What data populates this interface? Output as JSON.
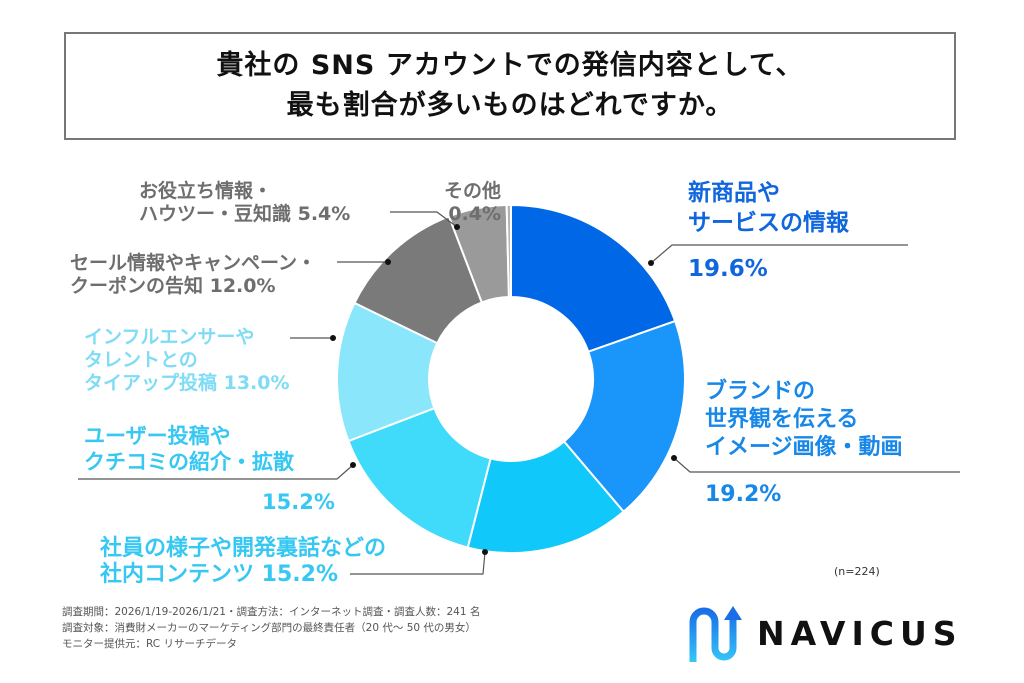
{
  "title": {
    "line1": "貴社の SNS アカウントでの発信内容として、",
    "line2": "最も割合が多いものはどれですか。"
  },
  "chart_data": {
    "type": "pie",
    "subtype": "donut",
    "title": "貴社の SNS アカウントでの発信内容として、最も割合が多いものはどれですか。",
    "sample_size": "n=224",
    "categories": [
      "新商品やサービスの情報",
      "ブランドの世界観を伝えるイメージ画像・動画",
      "社員の様子や開発裏話などの社内コンテンツ",
      "ユーザー投稿やクチコミの紹介・拡散",
      "インフルエンサーやタレントとのタイアップ投稿",
      "セール情報やキャンペーン・クーポンの告知",
      "お役立ち情報・ハウツー・豆知識",
      "その他"
    ],
    "values": [
      19.6,
      19.2,
      15.2,
      15.2,
      13.0,
      12.0,
      5.4,
      0.4
    ],
    "unit": "%",
    "colors": [
      "#0068E6",
      "#1A96FA",
      "#10C8FA",
      "#40DAFA",
      "#8AE6FA",
      "#7A7A7A",
      "#9A9A9A",
      "#B4B4B4"
    ],
    "start_angle": "12 o'clock, clockwise"
  },
  "labels": {
    "s1": {
      "line1": "新商品や",
      "line2": "サービスの情報",
      "pct": "19.6%"
    },
    "s2": {
      "line1": "ブランドの",
      "line2": "世界観を伝える",
      "line3": "イメージ画像・動画",
      "pct": "19.2%"
    },
    "s3": {
      "line1": "社員の様子や開発裏話などの",
      "line2": "社内コンテンツ 15.2%"
    },
    "s4": {
      "line1": "ユーザー投稿や",
      "line2": "クチコミの紹介・拡散",
      "pct": "15.2%"
    },
    "s5": {
      "line1": "インフルエンサーや",
      "line2": "タレントとの",
      "line3": "タイアップ投稿 13.0%"
    },
    "s6": {
      "line1": "セール情報やキャンペーン・",
      "line2": "クーポンの告知 12.0%"
    },
    "s7": {
      "line1": "お役立ち情報・",
      "line2": "ハウツー・豆知識 5.4%"
    },
    "s8": {
      "line1": "その他",
      "line2": "0.4%"
    }
  },
  "n_note": "(n=224)",
  "footnote": {
    "line1": "調査期間：2026/1/19-2026/1/21・調査方法：インターネット調査・調査人数：241 名",
    "line2": "調査対象：消費財メーカーのマーケティング部門の最終責任者（20 代～ 50 代の男女）",
    "line3": "モニター提供元：RC リサーチデータ"
  },
  "logo": {
    "text": "NAVICUS"
  }
}
